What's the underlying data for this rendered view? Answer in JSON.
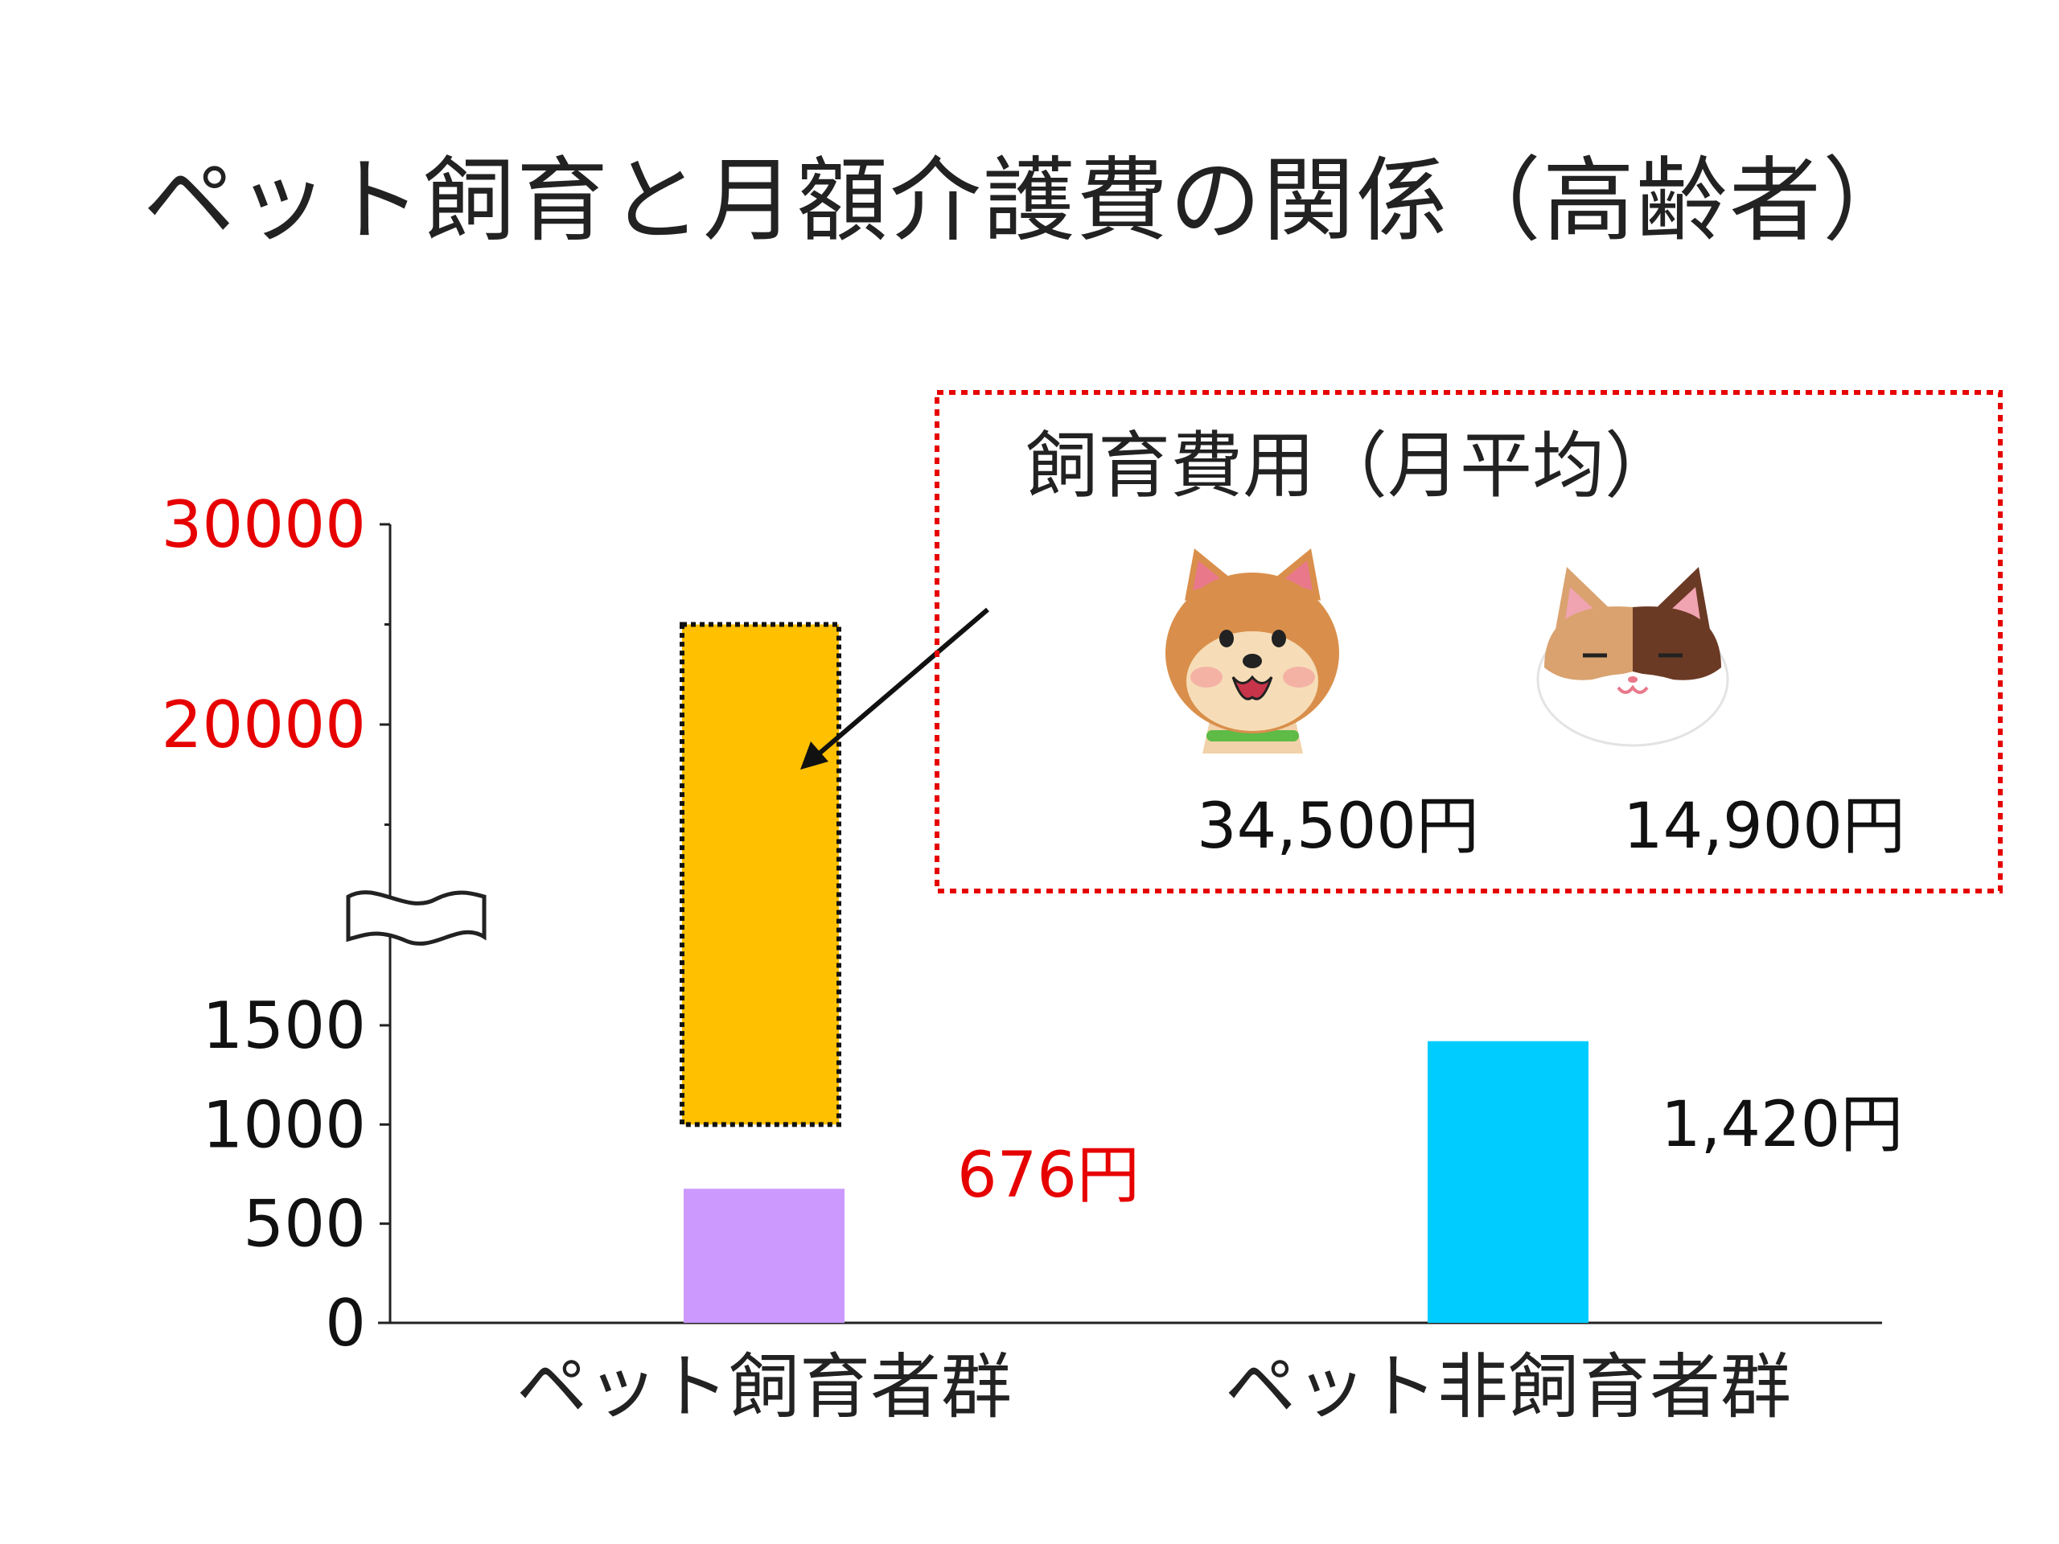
{
  "title": "ペット飼育と月額介護費の関係（高齢者）",
  "colors": {
    "owner_bar": "#CC99FF",
    "owner_upper_bar": "#FFC000",
    "non_owner_bar": "#00CCFF",
    "upper_tick_labels": "#E60000",
    "owner_value_label": "#E60000",
    "inset_border": "#E60000"
  },
  "chart_data": {
    "type": "bar",
    "categories": [
      "ペット飼育者群",
      "ペット非飼育者群"
    ],
    "values": [
      676,
      1420
    ],
    "value_labels": [
      "676円",
      "1,420円"
    ],
    "y_axis": {
      "broken": true,
      "lower_range": [
        0,
        1500
      ],
      "lower_ticks": [
        0,
        500,
        1000,
        1500
      ],
      "upper_range": [
        10000,
        30000
      ],
      "upper_ticks": [
        20000,
        30000
      ],
      "tick_labels": [
        "0",
        "500",
        "1000",
        "1500",
        "20000",
        "30000"
      ]
    },
    "overlay_bar": {
      "category": "ペット飼育者群",
      "from": 1000,
      "to": 25000,
      "style": "dotted-outline",
      "note": "includes pet care cost"
    },
    "inset": {
      "title": "飼育費用（月平均）",
      "items": [
        {
          "icon": "dog-icon",
          "cost": "34,500円"
        },
        {
          "icon": "cat-icon",
          "cost": "14,900円"
        }
      ]
    }
  }
}
